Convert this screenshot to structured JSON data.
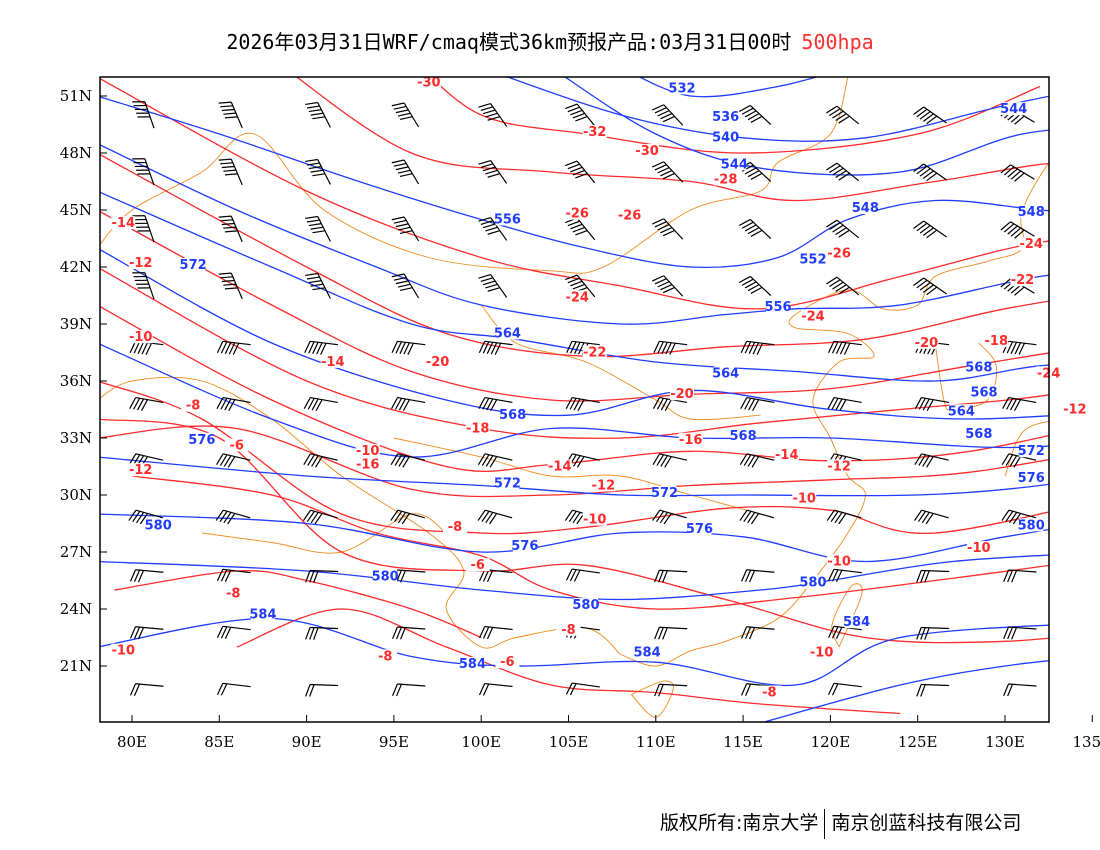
{
  "title": {
    "main": "2026年03月31日WRF/cmaq模式36km预报产品:03月31日00时",
    "level": "500hpa"
  },
  "footer": {
    "left": "版权所有:南京大学",
    "right": "南京创蓝科技有限公司"
  },
  "colors": {
    "height": "#1f3cff",
    "temperature": "#ff2a2a",
    "coast": "#f08a20",
    "barb": "#000000"
  },
  "map": {
    "lon_range": [
      78,
      138
    ],
    "lat_range": [
      18,
      52
    ],
    "x_ticks": [
      "80E",
      "85E",
      "90E",
      "95E",
      "100E",
      "105E",
      "110E",
      "115E",
      "120E",
      "125E",
      "130E",
      "135E"
    ],
    "x_tick_values": [
      80,
      85,
      90,
      95,
      100,
      105,
      110,
      115,
      120,
      125,
      130,
      135
    ],
    "y_ticks": [
      "51N",
      "48N",
      "45N",
      "42N",
      "39N",
      "36N",
      "33N",
      "30N",
      "27N",
      "24N",
      "21N"
    ],
    "y_tick_values": [
      51,
      48,
      45,
      42,
      39,
      36,
      33,
      30,
      27,
      24,
      21
    ]
  },
  "height_labels": [
    {
      "text": "532",
      "lon": 111.5,
      "lat": 51.3
    },
    {
      "text": "536",
      "lon": 114,
      "lat": 49.8
    },
    {
      "text": "540",
      "lon": 114,
      "lat": 48.7
    },
    {
      "text": "544",
      "lon": 114.5,
      "lat": 47.3
    },
    {
      "text": "544",
      "lon": 130.5,
      "lat": 50.2
    },
    {
      "text": "548",
      "lon": 122,
      "lat": 45
    },
    {
      "text": "548",
      "lon": 131.5,
      "lat": 44.8
    },
    {
      "text": "556",
      "lon": 101.5,
      "lat": 44.4
    },
    {
      "text": "552",
      "lon": 119,
      "lat": 42.3
    },
    {
      "text": "572",
      "lon": 83.5,
      "lat": 42
    },
    {
      "text": "556",
      "lon": 117,
      "lat": 39.8
    },
    {
      "text": "564",
      "lon": 101.5,
      "lat": 38.4
    },
    {
      "text": "564",
      "lon": 114,
      "lat": 36.3
    },
    {
      "text": "568",
      "lon": 128.5,
      "lat": 36.6
    },
    {
      "text": "568",
      "lon": 128.8,
      "lat": 35.3
    },
    {
      "text": "564",
      "lon": 127.5,
      "lat": 34.3
    },
    {
      "text": "568",
      "lon": 101.8,
      "lat": 34.1
    },
    {
      "text": "568",
      "lon": 115,
      "lat": 33
    },
    {
      "text": "568",
      "lon": 128.5,
      "lat": 33.1
    },
    {
      "text": "576",
      "lon": 84,
      "lat": 32.8
    },
    {
      "text": "572",
      "lon": 131.5,
      "lat": 32.2
    },
    {
      "text": "572",
      "lon": 101.5,
      "lat": 30.5
    },
    {
      "text": "572",
      "lon": 110.5,
      "lat": 30
    },
    {
      "text": "576",
      "lon": 131.5,
      "lat": 30.8
    },
    {
      "text": "580",
      "lon": 81.5,
      "lat": 28.3
    },
    {
      "text": "576",
      "lon": 112.5,
      "lat": 28.1
    },
    {
      "text": "580",
      "lon": 131.5,
      "lat": 28.3
    },
    {
      "text": "576",
      "lon": 102.5,
      "lat": 27.2
    },
    {
      "text": "580",
      "lon": 94.5,
      "lat": 25.6
    },
    {
      "text": "580",
      "lon": 119,
      "lat": 25.3
    },
    {
      "text": "580",
      "lon": 106,
      "lat": 24.1
    },
    {
      "text": "584",
      "lon": 87.5,
      "lat": 23.6
    },
    {
      "text": "584",
      "lon": 121.5,
      "lat": 23.2
    },
    {
      "text": "584",
      "lon": 109.5,
      "lat": 21.6
    },
    {
      "text": "584",
      "lon": 99.5,
      "lat": 21
    }
  ],
  "temperature_labels": [
    {
      "text": "-30",
      "lon": 97,
      "lat": 51.6
    },
    {
      "text": "-32",
      "lon": 106.5,
      "lat": 49
    },
    {
      "text": "-30",
      "lon": 109.5,
      "lat": 48
    },
    {
      "text": "-28",
      "lon": 114,
      "lat": 46.5
    },
    {
      "text": "-26",
      "lon": 105.5,
      "lat": 44.7
    },
    {
      "text": "-26",
      "lon": 108.5,
      "lat": 44.6
    },
    {
      "text": "-14",
      "lon": 79.5,
      "lat": 44.2
    },
    {
      "text": "-24",
      "lon": 131.5,
      "lat": 43.1
    },
    {
      "text": "-26",
      "lon": 120.5,
      "lat": 42.6
    },
    {
      "text": "-12",
      "lon": 80.5,
      "lat": 42.1
    },
    {
      "text": "-22",
      "lon": 131,
      "lat": 41.2
    },
    {
      "text": "-24",
      "lon": 105.5,
      "lat": 40.3
    },
    {
      "text": "-24",
      "lon": 119,
      "lat": 39.3
    },
    {
      "text": "-10",
      "lon": 80.5,
      "lat": 38.2
    },
    {
      "text": "-22",
      "lon": 106.5,
      "lat": 37.4
    },
    {
      "text": "-20",
      "lon": 125.5,
      "lat": 37.9
    },
    {
      "text": "-18",
      "lon": 129.5,
      "lat": 38
    },
    {
      "text": "-14",
      "lon": 91.5,
      "lat": 36.9
    },
    {
      "text": "-20",
      "lon": 97.5,
      "lat": 36.9
    },
    {
      "text": "-24",
      "lon": 132.5,
      "lat": 36.3
    },
    {
      "text": "-8",
      "lon": 83.5,
      "lat": 34.6
    },
    {
      "text": "-20",
      "lon": 111.5,
      "lat": 35.2
    },
    {
      "text": "-12",
      "lon": 134,
      "lat": 34.4
    },
    {
      "text": "-18",
      "lon": 99.8,
      "lat": 33.4
    },
    {
      "text": "-6",
      "lon": 86,
      "lat": 32.5
    },
    {
      "text": "-16",
      "lon": 112,
      "lat": 32.8
    },
    {
      "text": "-10",
      "lon": 93.5,
      "lat": 32.2
    },
    {
      "text": "-16",
      "lon": 93.5,
      "lat": 31.5
    },
    {
      "text": "-14",
      "lon": 104.5,
      "lat": 31.4
    },
    {
      "text": "-14",
      "lon": 117.5,
      "lat": 32
    },
    {
      "text": "-12",
      "lon": 120.5,
      "lat": 31.4
    },
    {
      "text": "-12",
      "lon": 80.5,
      "lat": 31.2
    },
    {
      "text": "-12",
      "lon": 107,
      "lat": 30.4
    },
    {
      "text": "-10",
      "lon": 118.5,
      "lat": 29.7
    },
    {
      "text": "-10",
      "lon": 106.5,
      "lat": 28.6
    },
    {
      "text": "-8",
      "lon": 98.5,
      "lat": 28.2
    },
    {
      "text": "-10",
      "lon": 128.5,
      "lat": 27.1
    },
    {
      "text": "-10",
      "lon": 120.5,
      "lat": 26.4
    },
    {
      "text": "-6",
      "lon": 99.8,
      "lat": 26.2
    },
    {
      "text": "-8",
      "lon": 85.8,
      "lat": 24.7
    },
    {
      "text": "-8",
      "lon": 105,
      "lat": 22.8
    },
    {
      "text": "-10",
      "lon": 79.5,
      "lat": 21.7
    },
    {
      "text": "-8",
      "lon": 94.5,
      "lat": 21.4
    },
    {
      "text": "-6",
      "lon": 101.5,
      "lat": 21.1
    },
    {
      "text": "-10",
      "lon": 119.5,
      "lat": 21.6
    },
    {
      "text": "-8",
      "lon": 116.5,
      "lat": 19.5
    }
  ]
}
